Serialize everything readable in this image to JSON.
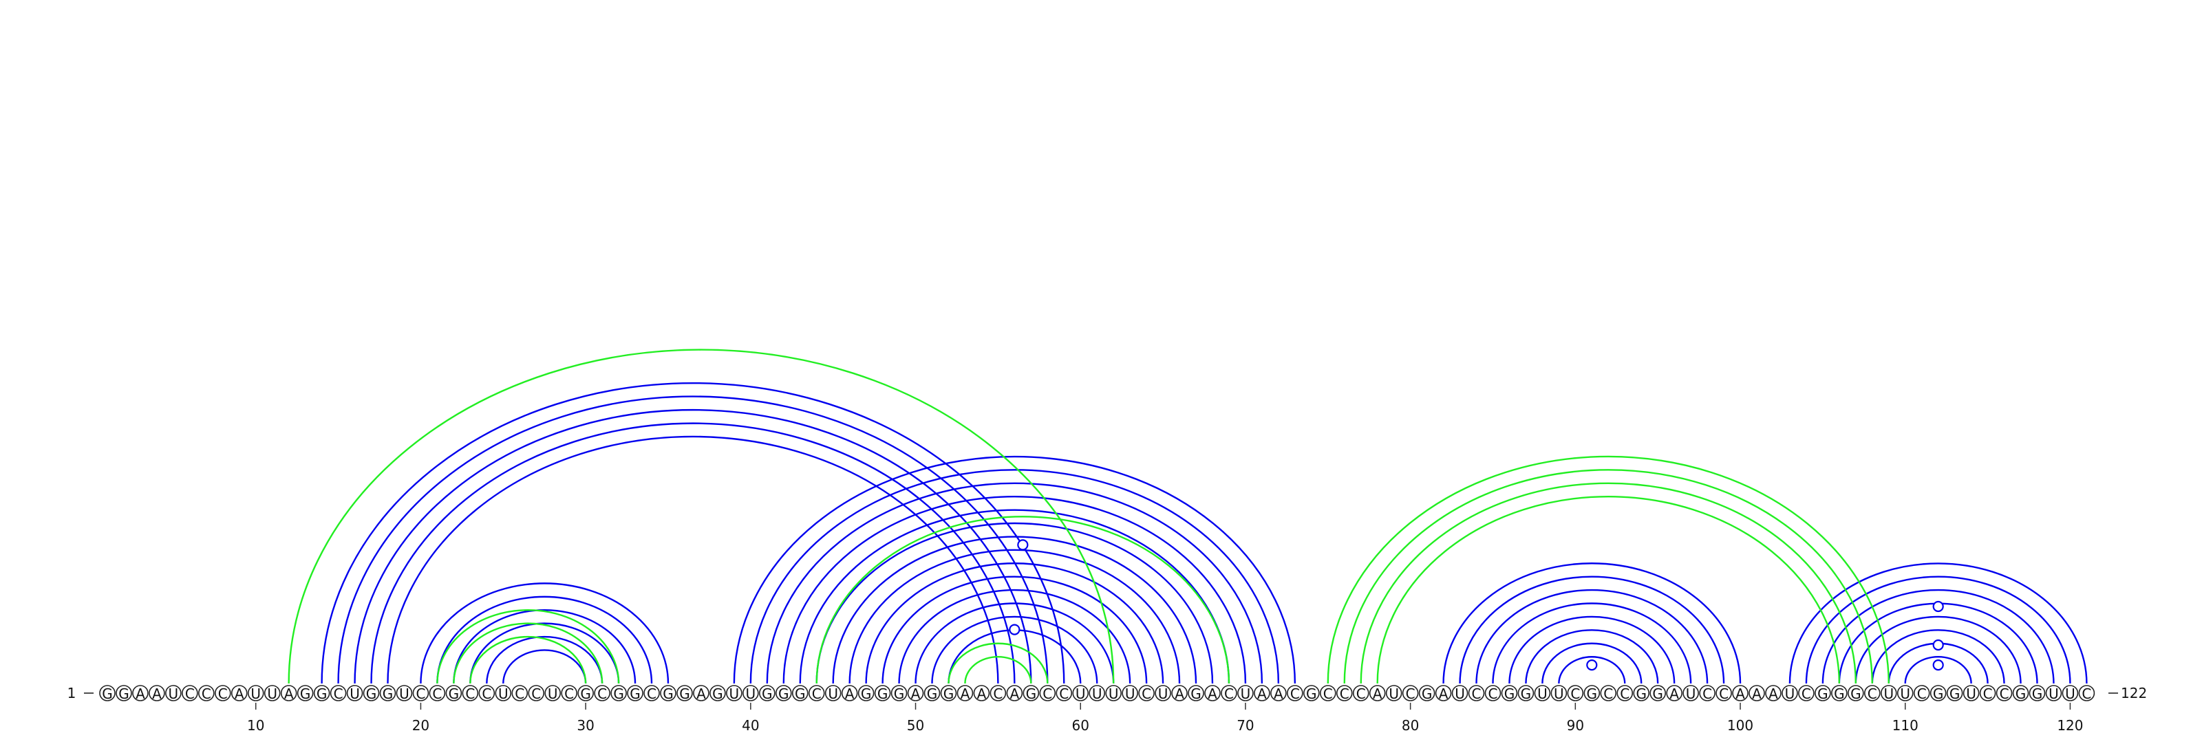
{
  "sequence": "GGAAUCCCAUUAGGCUGGUCCGCCUCCUCGCGGCGGAGUUGGGCUAGGGAGGAACAGCCUUUUCUAGACUAACGCCCAUCGAUCCGGUUCGCCGGAUCCAAAUCGGGCUUCGGUCCGGUUC",
  "start_label": "1",
  "end_label": "122",
  "ticks": [
    10,
    20,
    30,
    40,
    50,
    60,
    70,
    80,
    90,
    100,
    110,
    120
  ],
  "colors": {
    "blue": "#0000ee",
    "green": "#22ee22",
    "text": "#111111"
  },
  "chart_data": {
    "type": "arc-diagram",
    "length": 122,
    "arc_groups": [
      {
        "color": "blue",
        "pairs": [
          [
            14,
            59
          ],
          [
            15,
            58
          ],
          [
            16,
            57
          ],
          [
            17,
            56
          ],
          [
            18,
            55
          ],
          [
            20,
            35
          ],
          [
            21,
            34
          ],
          [
            22,
            33
          ],
          [
            23,
            32
          ],
          [
            24,
            31
          ],
          [
            25,
            30
          ],
          [
            39,
            73
          ],
          [
            40,
            72
          ],
          [
            41,
            71
          ],
          [
            42,
            70
          ],
          [
            43,
            69
          ],
          [
            44,
            68
          ],
          [
            45,
            67
          ],
          [
            46,
            66
          ],
          [
            47,
            65
          ],
          [
            48,
            64
          ],
          [
            49,
            63
          ],
          [
            50,
            62
          ],
          [
            51,
            61
          ],
          [
            52,
            60
          ],
          [
            82,
            100
          ],
          [
            83,
            99
          ],
          [
            84,
            98
          ],
          [
            85,
            97
          ],
          [
            86,
            96
          ],
          [
            87,
            95
          ],
          [
            88,
            94
          ],
          [
            89,
            93
          ],
          [
            103,
            121
          ],
          [
            104,
            120
          ],
          [
            105,
            119
          ],
          [
            106,
            118
          ],
          [
            107,
            117
          ],
          [
            108,
            116
          ],
          [
            109,
            115
          ],
          [
            110,
            114
          ]
        ]
      },
      {
        "color": "green",
        "pairs": [
          [
            12,
            62
          ],
          [
            21,
            32
          ],
          [
            22,
            31
          ],
          [
            23,
            30
          ],
          [
            44,
            69
          ],
          [
            52,
            58
          ],
          [
            53,
            57
          ],
          [
            75,
            109
          ],
          [
            76,
            108
          ],
          [
            77,
            107
          ],
          [
            78,
            106
          ]
        ]
      }
    ],
    "nodes": [
      {
        "position": 56.5,
        "level": 0.9,
        "color": "blue"
      },
      {
        "position": 56,
        "level": 0.35,
        "color": "blue"
      },
      {
        "position": 91,
        "level": 0.12,
        "color": "blue"
      },
      {
        "position": 112,
        "level": 0.5,
        "color": "blue"
      },
      {
        "position": 112,
        "level": 0.25,
        "color": "blue"
      },
      {
        "position": 112,
        "level": 0.12,
        "color": "blue"
      }
    ]
  }
}
